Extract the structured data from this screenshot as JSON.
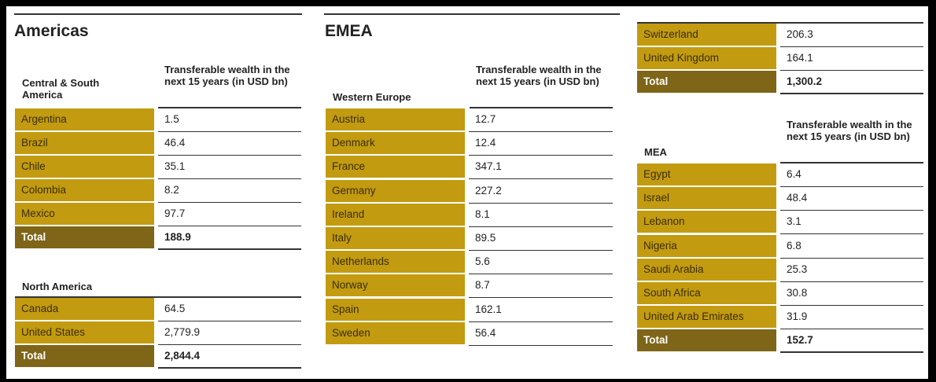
{
  "americas": {
    "title": "Americas",
    "central": {
      "header_label": "Central & South America",
      "column_header": "Transferable wealth in the next 15 years (in USD bn)",
      "rows": [
        {
          "name": "Argentina",
          "value": "1.5"
        },
        {
          "name": "Brazil",
          "value": "46.4"
        },
        {
          "name": "Chile",
          "value": "35.1"
        },
        {
          "name": "Colombia",
          "value": "8.2"
        },
        {
          "name": "Mexico",
          "value": "97.7"
        }
      ],
      "total": {
        "name": "Total",
        "value": "188.9"
      }
    },
    "north": {
      "header_label": "North America",
      "rows": [
        {
          "name": "Canada",
          "value": "64.5"
        },
        {
          "name": "United States",
          "value": "2,779.9"
        }
      ],
      "total": {
        "name": "Total",
        "value": "2,844.4"
      }
    }
  },
  "emea": {
    "title": "EMEA",
    "western_europe": {
      "header_label": "Western Europe",
      "column_header": "Transferable wealth in the next 15 years (in USD bn)",
      "rows": [
        {
          "name": "Austria",
          "value": "12.7"
        },
        {
          "name": "Denmark",
          "value": "12.4"
        },
        {
          "name": "France",
          "value": "347.1"
        },
        {
          "name": "Germany",
          "value": "227.2"
        },
        {
          "name": "Ireland",
          "value": "8.1"
        },
        {
          "name": "Italy",
          "value": "89.5"
        },
        {
          "name": "Netherlands",
          "value": "5.6"
        },
        {
          "name": "Norway",
          "value": "8.7"
        },
        {
          "name": "Spain",
          "value": "162.1"
        },
        {
          "name": "Sweden",
          "value": "56.4"
        }
      ]
    },
    "western_europe_cont": {
      "rows": [
        {
          "name": "Switzerland",
          "value": "206.3"
        },
        {
          "name": "United Kingdom",
          "value": "164.1"
        }
      ],
      "total": {
        "name": "Total",
        "value": "1,300.2"
      }
    },
    "mea": {
      "header_label": "MEA",
      "column_header": "Transferable wealth in the next 15 years (in USD bn)",
      "rows": [
        {
          "name": "Egypt",
          "value": "6.4"
        },
        {
          "name": "Israel",
          "value": "48.4"
        },
        {
          "name": "Lebanon",
          "value": "3.1"
        },
        {
          "name": "Nigeria",
          "value": "6.8"
        },
        {
          "name": "Saudi Arabia",
          "value": "25.3"
        },
        {
          "name": "South Africa",
          "value": "30.8"
        },
        {
          "name": "United Arab Emirates",
          "value": "31.9"
        }
      ],
      "total": {
        "name": "Total",
        "value": "152.7"
      }
    }
  },
  "colors": {
    "row_label": "#c39b10",
    "total_label": "#7e6518",
    "frame": "#000000"
  }
}
